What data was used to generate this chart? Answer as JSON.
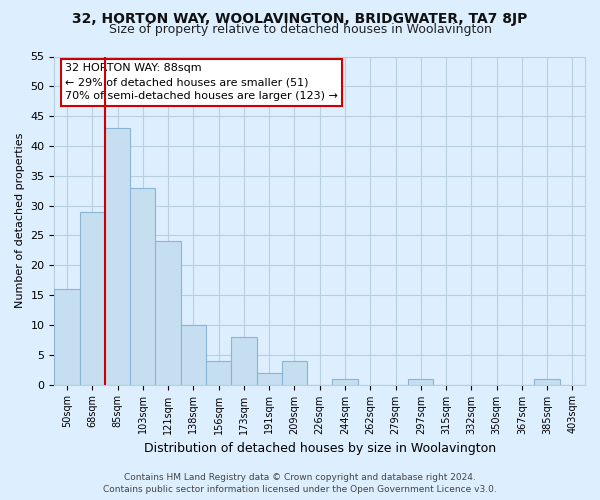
{
  "title": "32, HORTON WAY, WOOLAVINGTON, BRIDGWATER, TA7 8JP",
  "subtitle": "Size of property relative to detached houses in Woolavington",
  "xlabel": "Distribution of detached houses by size in Woolavington",
  "ylabel": "Number of detached properties",
  "bar_labels": [
    "50sqm",
    "68sqm",
    "85sqm",
    "103sqm",
    "121sqm",
    "138sqm",
    "156sqm",
    "173sqm",
    "191sqm",
    "209sqm",
    "226sqm",
    "244sqm",
    "262sqm",
    "279sqm",
    "297sqm",
    "315sqm",
    "332sqm",
    "350sqm",
    "367sqm",
    "385sqm",
    "403sqm"
  ],
  "bar_values": [
    16,
    29,
    43,
    33,
    24,
    10,
    4,
    8,
    2,
    4,
    0,
    1,
    0,
    0,
    1,
    0,
    0,
    0,
    0,
    1,
    0
  ],
  "bar_color": "#c5dff0",
  "bar_edge_color": "#8ab4d4",
  "vline_bar_index": 2,
  "vline_color": "#cc0000",
  "ylim": [
    0,
    55
  ],
  "yticks": [
    0,
    5,
    10,
    15,
    20,
    25,
    30,
    35,
    40,
    45,
    50,
    55
  ],
  "annotation_title": "32 HORTON WAY: 88sqm",
  "annotation_line1": "← 29% of detached houses are smaller (51)",
  "annotation_line2": "70% of semi-detached houses are larger (123) →",
  "footer1": "Contains HM Land Registry data © Crown copyright and database right 2024.",
  "footer2": "Contains public sector information licensed under the Open Government Licence v3.0.",
  "fig_background": "#ddeeff",
  "plot_background": "#ddeeff",
  "grid_color": "#b8cfe0",
  "title_fontsize": 10,
  "subtitle_fontsize": 9
}
